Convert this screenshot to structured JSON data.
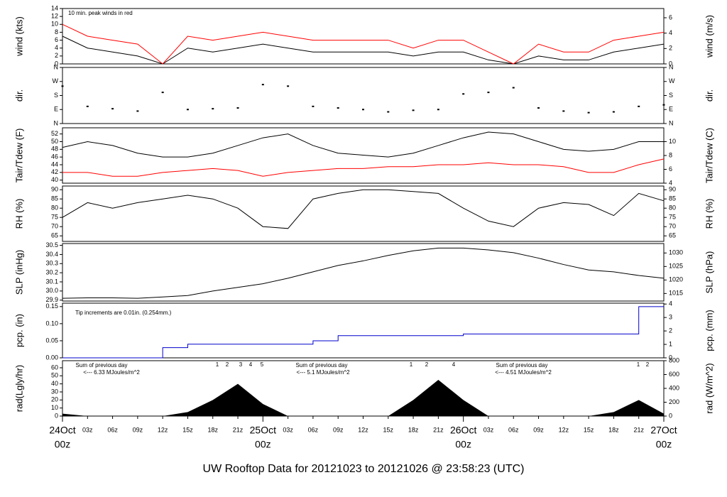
{
  "chart_data": [
    {
      "type": "line",
      "title": "UW Rooftop Data for 20121023  to  20121026 @ 23:58:23  (UTC)",
      "ylabel": "wind (kts)",
      "y2label": "wind (m/s)",
      "annotation": "10 min. peak winds in red",
      "xlim": [
        0,
        72
      ],
      "x": [
        0,
        3,
        6,
        9,
        12,
        15,
        18,
        21,
        24,
        27,
        30,
        33,
        36,
        39,
        42,
        45,
        48,
        51,
        54,
        57,
        60,
        63,
        66,
        69,
        72
      ],
      "ylim": [
        0,
        14
      ],
      "yticks": [
        0,
        2,
        4,
        6,
        8,
        10,
        12,
        14
      ],
      "y2lim": [
        0,
        7.2
      ],
      "y2ticks": [
        0,
        2,
        4,
        6
      ],
      "series": [
        {
          "color": "#000000",
          "values": [
            7,
            4,
            3,
            2,
            0,
            4,
            3,
            4,
            5,
            4,
            3,
            3,
            3,
            3,
            2,
            3,
            3,
            1,
            0,
            2,
            1,
            1,
            3,
            4,
            5
          ]
        },
        {
          "color": "#ff0000",
          "values": [
            10,
            7,
            6,
            5,
            0,
            7,
            6,
            7,
            8,
            7,
            6,
            6,
            6,
            6,
            4,
            6,
            6,
            3,
            0,
            5,
            3,
            3,
            6,
            7,
            8
          ]
        }
      ]
    },
    {
      "type": "scatter",
      "ylabel": "dir.",
      "y2label": "dir.",
      "xlim": [
        0,
        72
      ],
      "x": [
        0,
        3,
        6,
        9,
        12,
        15,
        18,
        21,
        24,
        27,
        30,
        33,
        36,
        39,
        42,
        45,
        48,
        51,
        54,
        57,
        60,
        63,
        66,
        69,
        72
      ],
      "ylim": [
        0,
        360
      ],
      "yticks": [
        {
          "value": 0,
          "label": "N"
        },
        {
          "value": 90,
          "label": "E"
        },
        {
          "value": 180,
          "label": "S"
        },
        {
          "value": 270,
          "label": "W"
        },
        {
          "value": 360,
          "label": "N"
        }
      ],
      "y2lim": [
        0,
        360
      ],
      "y2ticks": [
        {
          "value": 0,
          "label": "N"
        },
        {
          "value": 90,
          "label": "E"
        },
        {
          "value": 180,
          "label": "S"
        },
        {
          "value": 270,
          "label": "W"
        },
        {
          "value": 360,
          "label": "N"
        }
      ],
      "series": [
        {
          "color": "#000000",
          "values": [
            240,
            110,
            95,
            80,
            200,
            90,
            95,
            100,
            250,
            240,
            110,
            100,
            90,
            75,
            85,
            90,
            190,
            200,
            230,
            100,
            80,
            70,
            75,
            110,
            120
          ]
        }
      ]
    },
    {
      "type": "line",
      "ylabel": "Tair/Tdew (F)",
      "y2label": "Tair/Tdew (C)",
      "xlim": [
        0,
        72
      ],
      "x": [
        0,
        3,
        6,
        9,
        12,
        15,
        18,
        21,
        24,
        27,
        30,
        33,
        36,
        39,
        42,
        45,
        48,
        51,
        54,
        57,
        60,
        63,
        66,
        69,
        72
      ],
      "ylim": [
        39.2,
        53.6
      ],
      "yticks": [
        40,
        42,
        44,
        46,
        48,
        50,
        52
      ],
      "y2lim": [
        4,
        12
      ],
      "y2ticks": [
        4,
        6,
        8,
        10
      ],
      "series": [
        {
          "color": "#000000",
          "values": [
            48.5,
            50,
            49,
            47,
            46,
            46,
            47,
            49,
            51,
            52,
            49,
            47,
            46.5,
            46,
            47,
            49,
            51,
            52.5,
            52,
            50,
            48,
            47.5,
            48,
            50,
            50
          ]
        },
        {
          "color": "#ff0000",
          "values": [
            42,
            42,
            41,
            41,
            42,
            42.5,
            43,
            42.5,
            41,
            42,
            42.5,
            43,
            43,
            43.5,
            43.5,
            44,
            44,
            44.5,
            44,
            44,
            43.5,
            42,
            42,
            44,
            45.5
          ]
        }
      ]
    },
    {
      "type": "line",
      "ylabel": "RH (%)",
      "y2label": "RH (%)",
      "xlim": [
        0,
        72
      ],
      "x": [
        0,
        3,
        6,
        9,
        12,
        15,
        18,
        21,
        24,
        27,
        30,
        33,
        36,
        39,
        42,
        45,
        48,
        51,
        54,
        57,
        60,
        63,
        66,
        69,
        72
      ],
      "ylim": [
        62,
        92
      ],
      "yticks": [
        65,
        70,
        75,
        80,
        85,
        90
      ],
      "y2lim": [
        62,
        92
      ],
      "y2ticks": [
        65,
        70,
        75,
        80,
        85,
        90
      ],
      "series": [
        {
          "color": "#000000",
          "values": [
            75,
            83,
            80,
            83,
            85,
            87,
            85,
            80,
            70,
            69,
            85,
            88,
            90,
            90,
            89,
            88,
            80,
            73,
            70,
            80,
            83,
            82,
            76,
            88,
            84
          ]
        }
      ]
    },
    {
      "type": "line",
      "ylabel": "SLP (inHg)",
      "y2label": "SLP (hPa)",
      "xlim": [
        0,
        72
      ],
      "x": [
        0,
        3,
        6,
        9,
        12,
        15,
        18,
        21,
        24,
        27,
        30,
        33,
        36,
        39,
        42,
        45,
        48,
        51,
        54,
        57,
        60,
        63,
        66,
        69,
        72
      ],
      "ylim": [
        29.89,
        30.52
      ],
      "yticks": [
        29.9,
        {
          "value": 30,
          "label": "30.0"
        },
        30.1,
        30.2,
        30.3,
        30.4,
        30.5
      ],
      "y2lim": [
        1012.2,
        1033.5
      ],
      "y2ticks": [
        1015,
        1020,
        1025,
        1030
      ],
      "series": [
        {
          "color": "#000000",
          "values": [
            29.92,
            29.925,
            29.925,
            29.92,
            29.935,
            29.95,
            30.0,
            30.04,
            30.08,
            30.14,
            30.21,
            30.28,
            30.33,
            30.39,
            30.44,
            30.47,
            30.47,
            30.45,
            30.42,
            30.36,
            30.29,
            30.23,
            30.21,
            30.17,
            30.14
          ]
        }
      ]
    },
    {
      "type": "line",
      "step": true,
      "ylabel": "pcp. (in)",
      "y2label": "pcp. (mm)",
      "annotation": "Tip increments are 0.01in. (0.254mm.)",
      "xlim": [
        0,
        72
      ],
      "x": [
        0,
        3,
        6,
        9,
        12,
        15,
        18,
        21,
        24,
        27,
        30,
        33,
        36,
        39,
        42,
        45,
        48,
        51,
        54,
        57,
        60,
        63,
        66,
        69,
        72
      ],
      "ylim": [
        0,
        0.16
      ],
      "yticks": [
        {
          "value": 0,
          "label": "0.00"
        },
        0.05,
        {
          "value": 0.1,
          "label": "0.10"
        },
        0.15
      ],
      "y2lim": [
        0,
        4.064
      ],
      "y2ticks": [
        0,
        1,
        2,
        3,
        4
      ],
      "series": [
        {
          "color": "#0000cc",
          "values": [
            0,
            0,
            0,
            0,
            0.03,
            0.04,
            0.04,
            0.04,
            0.04,
            0.04,
            0.05,
            0.065,
            0.065,
            0.065,
            0.065,
            0.065,
            0.07,
            0.07,
            0.07,
            0.07,
            0.07,
            0.07,
            0.07,
            0.15,
            0.15
          ]
        }
      ]
    },
    {
      "type": "area",
      "ylabel": "rad(Lgly/hr)",
      "y2label": "rad (W/m^2)",
      "annotations": [
        "Sum of previous day",
        "<--- 6.33 MJoules/m^2",
        "Sum of previous day",
        "<--- 5.1 MJoules/m^2",
        "Sum of previous day",
        "<--- 4.51 MJoules/m^2"
      ],
      "markers": [
        "1",
        "2",
        "3",
        "4",
        "5",
        "1",
        "2",
        "4",
        "1",
        "2"
      ],
      "xlim": [
        0,
        72
      ],
      "x": [
        0,
        3,
        6,
        9,
        12,
        15,
        18,
        21,
        24,
        27,
        30,
        33,
        36,
        39,
        42,
        45,
        48,
        51,
        54,
        57,
        60,
        63,
        66,
        69,
        72
      ],
      "ylim": [
        0,
        68.8
      ],
      "yticks": [
        0,
        10,
        20,
        30,
        40,
        50,
        60
      ],
      "y2lim": [
        0,
        800
      ],
      "y2ticks": [
        0,
        200,
        400,
        600,
        800
      ],
      "xticks": [
        {
          "value": 3,
          "label": "03z"
        },
        {
          "value": 6,
          "label": "06z"
        },
        {
          "value": 9,
          "label": "09z"
        },
        {
          "value": 12,
          "label": "12z"
        },
        {
          "value": 15,
          "label": "15z"
        },
        {
          "value": 18,
          "label": "18z"
        },
        {
          "value": 21,
          "label": "21z"
        },
        {
          "value": 27,
          "label": "03z"
        },
        {
          "value": 30,
          "label": "06z"
        },
        {
          "value": 33,
          "label": "09z"
        },
        {
          "value": 36,
          "label": "12z"
        },
        {
          "value": 39,
          "label": "15z"
        },
        {
          "value": 42,
          "label": "18z"
        },
        {
          "value": 45,
          "label": "21z"
        },
        {
          "value": 51,
          "label": "03z"
        },
        {
          "value": 54,
          "label": "06z"
        },
        {
          "value": 57,
          "label": "09z"
        },
        {
          "value": 60,
          "label": "12z"
        },
        {
          "value": 63,
          "label": "15z"
        },
        {
          "value": 66,
          "label": "18z"
        },
        {
          "value": 69,
          "label": "21z"
        }
      ],
      "date_ticks": [
        {
          "value": 0,
          "label": "24Oct",
          "sublabel": "00z"
        },
        {
          "value": 24,
          "label": "25Oct",
          "sublabel": "00z"
        },
        {
          "value": 48,
          "label": "26Oct",
          "sublabel": "00z"
        },
        {
          "value": 72,
          "label": "27Oct",
          "sublabel": "00z"
        }
      ],
      "series": [
        {
          "color": "#000000",
          "values": [
            3,
            0,
            0,
            0,
            0,
            5,
            20,
            40,
            15,
            0,
            0,
            0,
            0,
            0,
            20,
            45,
            20,
            0,
            0,
            0,
            0,
            0,
            5,
            20,
            3
          ]
        }
      ]
    }
  ]
}
